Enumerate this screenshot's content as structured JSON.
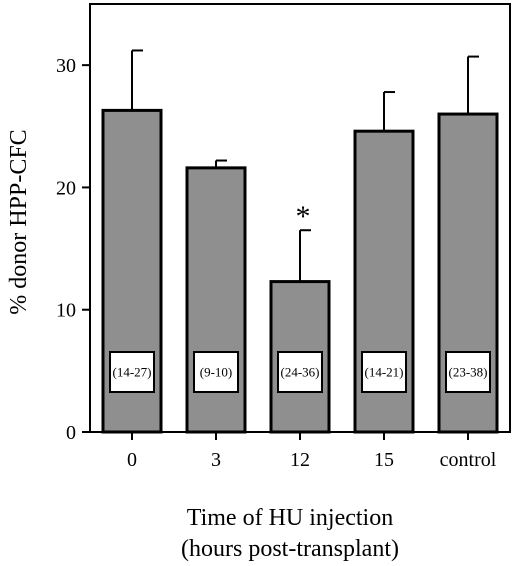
{
  "chart_data": {
    "type": "bar",
    "categories": [
      "0",
      "3",
      "12",
      "15",
      "control"
    ],
    "values": [
      26.3,
      21.6,
      12.3,
      24.6,
      26.0
    ],
    "error_upper": [
      31.2,
      22.2,
      16.5,
      27.8,
      30.7
    ],
    "range_labels": [
      "(14-27)",
      "(9-10)",
      "(24-36)",
      "(14-21)",
      "(23-38)"
    ],
    "annotations": [
      {
        "category": "12",
        "text": "*"
      }
    ],
    "ylabel": "% donor HPP-CFC",
    "xlabel_lines": [
      "Time of HU injection",
      "(hours post-transplant)"
    ],
    "yticks": [
      0,
      10,
      20,
      30
    ],
    "ylim": [
      0,
      35
    ],
    "grid": false,
    "bar_color": "#8f8f8f",
    "edge_color": "#000000"
  }
}
